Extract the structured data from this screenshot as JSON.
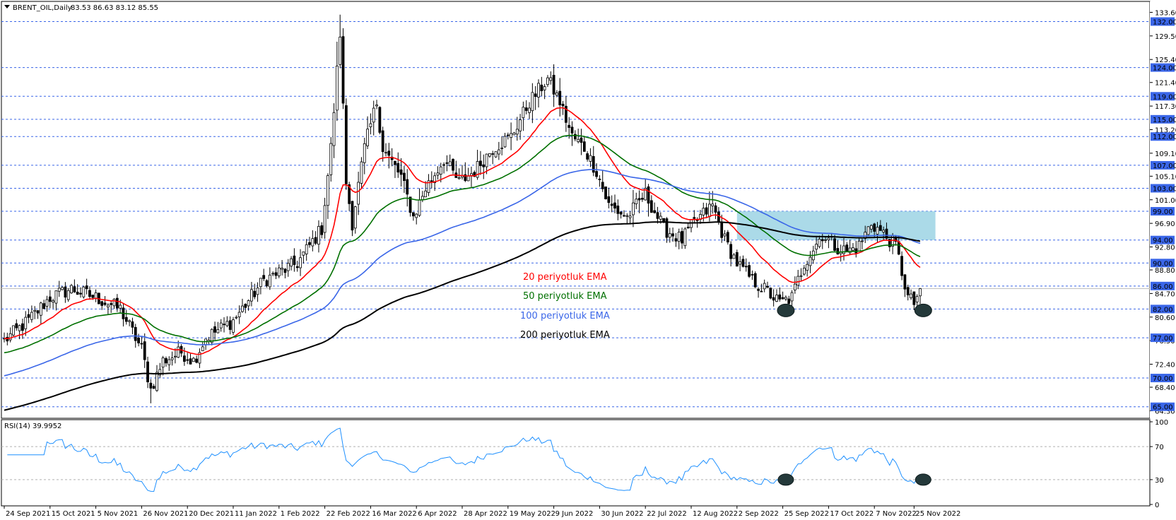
{
  "chart_data": {
    "type": "candlestick",
    "header": {
      "symbol_title": "BRENT_OIL,Daily",
      "ohlc": "83.53 86.63 83.12 85.55"
    },
    "price_axis": {
      "ylim": [
        63.0,
        135.5
      ],
      "tick_labels": [
        "133.60",
        "129.50",
        "125.40",
        "121.40",
        "117.30",
        "113.20",
        "109.10",
        "105.10",
        "101.00",
        "96.90",
        "92.80",
        "88.80",
        "84.70",
        "80.60",
        "76.50",
        "72.40",
        "68.40",
        "64.30"
      ],
      "tick_values": [
        133.6,
        129.5,
        125.4,
        121.4,
        117.3,
        113.2,
        109.1,
        105.1,
        101.0,
        96.9,
        92.8,
        88.8,
        84.7,
        80.6,
        76.5,
        72.4,
        68.4,
        64.3
      ],
      "level_labels": [
        "132.00",
        "124.00",
        "119.00",
        "115.00",
        "112.00",
        "107.00",
        "103.00",
        "99.00",
        "94.00",
        "90.00",
        "86.00",
        "82.00",
        "77.00",
        "70.00",
        "65.00"
      ],
      "level_values": [
        132,
        124,
        119,
        115,
        112,
        107,
        103,
        99,
        94,
        90,
        86,
        82,
        77,
        70,
        65
      ],
      "last_price": 85.55
    },
    "x_axis": {
      "labels": [
        "24 Sep 2021",
        "15 Oct 2021",
        "5 Nov 2021",
        "26 Nov 2021",
        "20 Dec 2021",
        "11 Jan 2022",
        "1 Feb 2022",
        "22 Feb 2022",
        "16 Mar 2022",
        "6 Apr 2022",
        "28 Apr 2022",
        "19 May 2022",
        "9 Jun 2022",
        "30 Jun 2022",
        "22 Jul 2022",
        "12 Aug 2022",
        "2 Sep 2022",
        "25 Sep 2022",
        "17 Oct 2022",
        "7 Nov 2022",
        "25 Nov 2022"
      ],
      "bar_index": [
        0,
        15,
        30,
        45,
        60,
        75,
        90,
        105,
        120,
        135,
        150,
        165,
        180,
        195,
        210,
        225,
        240,
        255,
        270,
        285,
        298
      ]
    },
    "price_path_points": [
      [
        0,
        76.5
      ],
      [
        8,
        80
      ],
      [
        15,
        84
      ],
      [
        22,
        85.5
      ],
      [
        30,
        84
      ],
      [
        38,
        82
      ],
      [
        45,
        75
      ],
      [
        48,
        68
      ],
      [
        52,
        73
      ],
      [
        58,
        74.5
      ],
      [
        62,
        73
      ],
      [
        66,
        77
      ],
      [
        75,
        80
      ],
      [
        85,
        87
      ],
      [
        96,
        90
      ],
      [
        104,
        96
      ],
      [
        107,
        110
      ],
      [
        110,
        130
      ],
      [
        112,
        104
      ],
      [
        114,
        97
      ],
      [
        118,
        110
      ],
      [
        122,
        118
      ],
      [
        124,
        110
      ],
      [
        130,
        105
      ],
      [
        134,
        98
      ],
      [
        138,
        103
      ],
      [
        144,
        108
      ],
      [
        149,
        104
      ],
      [
        154,
        106
      ],
      [
        160,
        110
      ],
      [
        166,
        112
      ],
      [
        172,
        118
      ],
      [
        178,
        122
      ],
      [
        182,
        118
      ],
      [
        186,
        112
      ],
      [
        190,
        110
      ],
      [
        194,
        106
      ],
      [
        198,
        100
      ],
      [
        204,
        98
      ],
      [
        210,
        102
      ],
      [
        216,
        96
      ],
      [
        222,
        94
      ],
      [
        226,
        97
      ],
      [
        232,
        100
      ],
      [
        236,
        94
      ],
      [
        240,
        90
      ],
      [
        245,
        87
      ],
      [
        250,
        85
      ],
      [
        254,
        83
      ],
      [
        258,
        84
      ],
      [
        262,
        90
      ],
      [
        268,
        95
      ],
      [
        272,
        93
      ],
      [
        276,
        92
      ],
      [
        280,
        93
      ],
      [
        284,
        97
      ],
      [
        288,
        95
      ],
      [
        292,
        93
      ],
      [
        296,
        84
      ],
      [
        298,
        83
      ],
      [
        300,
        85.5
      ]
    ],
    "series": [
      {
        "name": "20 periyotluk EMA",
        "color": "#ff0000",
        "period": 20
      },
      {
        "name": "50 periyotluk EMA",
        "color": "#007000",
        "period": 50
      },
      {
        "name": "100 periyotluk EMA",
        "color": "#3a66e8",
        "period": 100
      },
      {
        "name": "200 periyotluk EMA",
        "color": "#000000",
        "period": 200
      }
    ],
    "annotations": {
      "resistance_zone": {
        "x_from_bar": 240,
        "x_to_bar": 305,
        "y_from": 94.0,
        "y_to": 99.0,
        "color": "#8fcde0"
      },
      "bottom_markers_bars": [
        256,
        301
      ]
    },
    "rsi_panel": {
      "title": "RSI(14) 39.9952",
      "tick_labels": [
        "100",
        "70",
        "30",
        "0"
      ],
      "tick_values": [
        100,
        70,
        30,
        0
      ],
      "ylim": [
        0,
        100
      ],
      "levels": [
        70,
        30
      ],
      "color": "#1e90ff",
      "bottom_markers_bars": [
        256,
        301
      ]
    }
  }
}
